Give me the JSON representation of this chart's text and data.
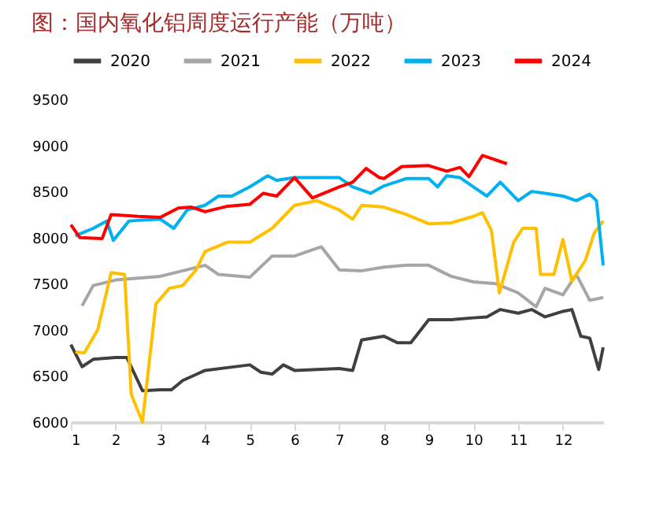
{
  "chart_data": {
    "type": "line",
    "title": "图：国内氧化铝周度运行产能（万吨）",
    "xlim": [
      1,
      12.9
    ],
    "xticks": [
      1,
      2,
      3,
      4,
      5,
      6,
      7,
      8,
      9,
      10,
      11,
      12
    ],
    "ylim": [
      6000,
      9500
    ],
    "yticks": [
      6000,
      6500,
      7000,
      7500,
      8000,
      8500,
      9000,
      9500
    ],
    "grid": false,
    "legend": "top",
    "marker": "none",
    "line_style": "solid",
    "series": [
      {
        "name": "2020",
        "color": "#404040",
        "x": [
          1,
          1.25,
          1.5,
          2,
          2.25,
          2.6,
          3,
          3.25,
          3.5,
          4,
          4.5,
          5,
          5.25,
          5.5,
          5.75,
          6,
          6.5,
          7,
          7.3,
          7.5,
          8,
          8.3,
          8.6,
          9,
          9.5,
          10,
          10.3,
          10.6,
          11,
          11.3,
          11.6,
          12,
          12.2,
          12.4,
          12.6,
          12.8,
          12.9
        ],
        "values": [
          6840,
          6600,
          6680,
          6700,
          6700,
          6340,
          6350,
          6350,
          6450,
          6560,
          6590,
          6620,
          6540,
          6520,
          6620,
          6560,
          6570,
          6580,
          6560,
          6890,
          6930,
          6860,
          6860,
          7110,
          7110,
          7130,
          7140,
          7220,
          7180,
          7220,
          7140,
          7200,
          7220,
          6930,
          6910,
          6570,
          6810
        ]
      },
      {
        "name": "2021",
        "color": "#a6a6a6",
        "x": [
          1.25,
          1.5,
          2,
          3,
          4,
          4.3,
          5,
          5.5,
          6,
          6.6,
          7,
          7.5,
          8,
          8.5,
          9,
          9.5,
          10,
          10.5,
          11,
          11.4,
          11.6,
          12,
          12.3,
          12.6,
          12.9
        ],
        "values": [
          7260,
          7480,
          7540,
          7580,
          7700,
          7600,
          7570,
          7800,
          7800,
          7900,
          7650,
          7640,
          7680,
          7700,
          7700,
          7580,
          7520,
          7500,
          7400,
          7250,
          7450,
          7380,
          7600,
          7320,
          7350
        ]
      },
      {
        "name": "2022",
        "color": "#ffc000",
        "x": [
          1.1,
          1.3,
          1.6,
          1.9,
          2.2,
          2.35,
          2.6,
          2.9,
          3.2,
          3.5,
          3.8,
          4,
          4.5,
          5,
          5.5,
          6,
          6.5,
          7,
          7.3,
          7.5,
          8,
          8.5,
          9,
          9.5,
          10,
          10.2,
          10.4,
          10.58,
          10.9,
          11.1,
          11.4,
          11.5,
          11.8,
          12,
          12.2,
          12.5,
          12.7,
          12.9
        ],
        "values": [
          6760,
          6750,
          7000,
          7620,
          7600,
          6300,
          6000,
          7280,
          7450,
          7480,
          7650,
          7850,
          7950,
          7950,
          8100,
          8350,
          8400,
          8300,
          8200,
          8350,
          8330,
          8250,
          8150,
          8160,
          8230,
          8270,
          8080,
          7400,
          7950,
          8100,
          8100,
          7600,
          7600,
          7980,
          7530,
          7750,
          8050,
          8180
        ]
      },
      {
        "name": "2023",
        "color": "#00b0f0",
        "x": [
          1.1,
          1.5,
          1.8,
          1.95,
          2.3,
          3,
          3.3,
          3.6,
          4,
          4.3,
          4.6,
          5,
          5.4,
          5.6,
          6,
          6.5,
          7,
          7.3,
          7.7,
          8,
          8.5,
          9,
          9.2,
          9.4,
          9.7,
          10,
          10.3,
          10.6,
          11,
          11.3,
          11.6,
          12,
          12.3,
          12.6,
          12.75,
          12.9
        ],
        "values": [
          8020,
          8100,
          8180,
          7970,
          8180,
          8200,
          8100,
          8300,
          8350,
          8450,
          8450,
          8550,
          8670,
          8620,
          8650,
          8650,
          8650,
          8550,
          8480,
          8560,
          8640,
          8640,
          8550,
          8670,
          8650,
          8550,
          8450,
          8600,
          8400,
          8500,
          8480,
          8450,
          8400,
          8470,
          8400,
          7700
        ]
      },
      {
        "name": "2024",
        "color": "#ff0000",
        "x": [
          1,
          1.2,
          1.7,
          1.9,
          2.5,
          3,
          3.4,
          3.7,
          4,
          4.5,
          5,
          5.3,
          5.6,
          6,
          6.4,
          7,
          7.3,
          7.6,
          7.9,
          8,
          8.4,
          9,
          9.4,
          9.7,
          9.9,
          10.2,
          10.75
        ],
        "values": [
          8140,
          8000,
          7990,
          8250,
          8230,
          8220,
          8320,
          8330,
          8280,
          8340,
          8360,
          8480,
          8450,
          8650,
          8430,
          8550,
          8600,
          8750,
          8650,
          8640,
          8770,
          8780,
          8720,
          8760,
          8660,
          8890,
          8800
        ]
      }
    ]
  }
}
